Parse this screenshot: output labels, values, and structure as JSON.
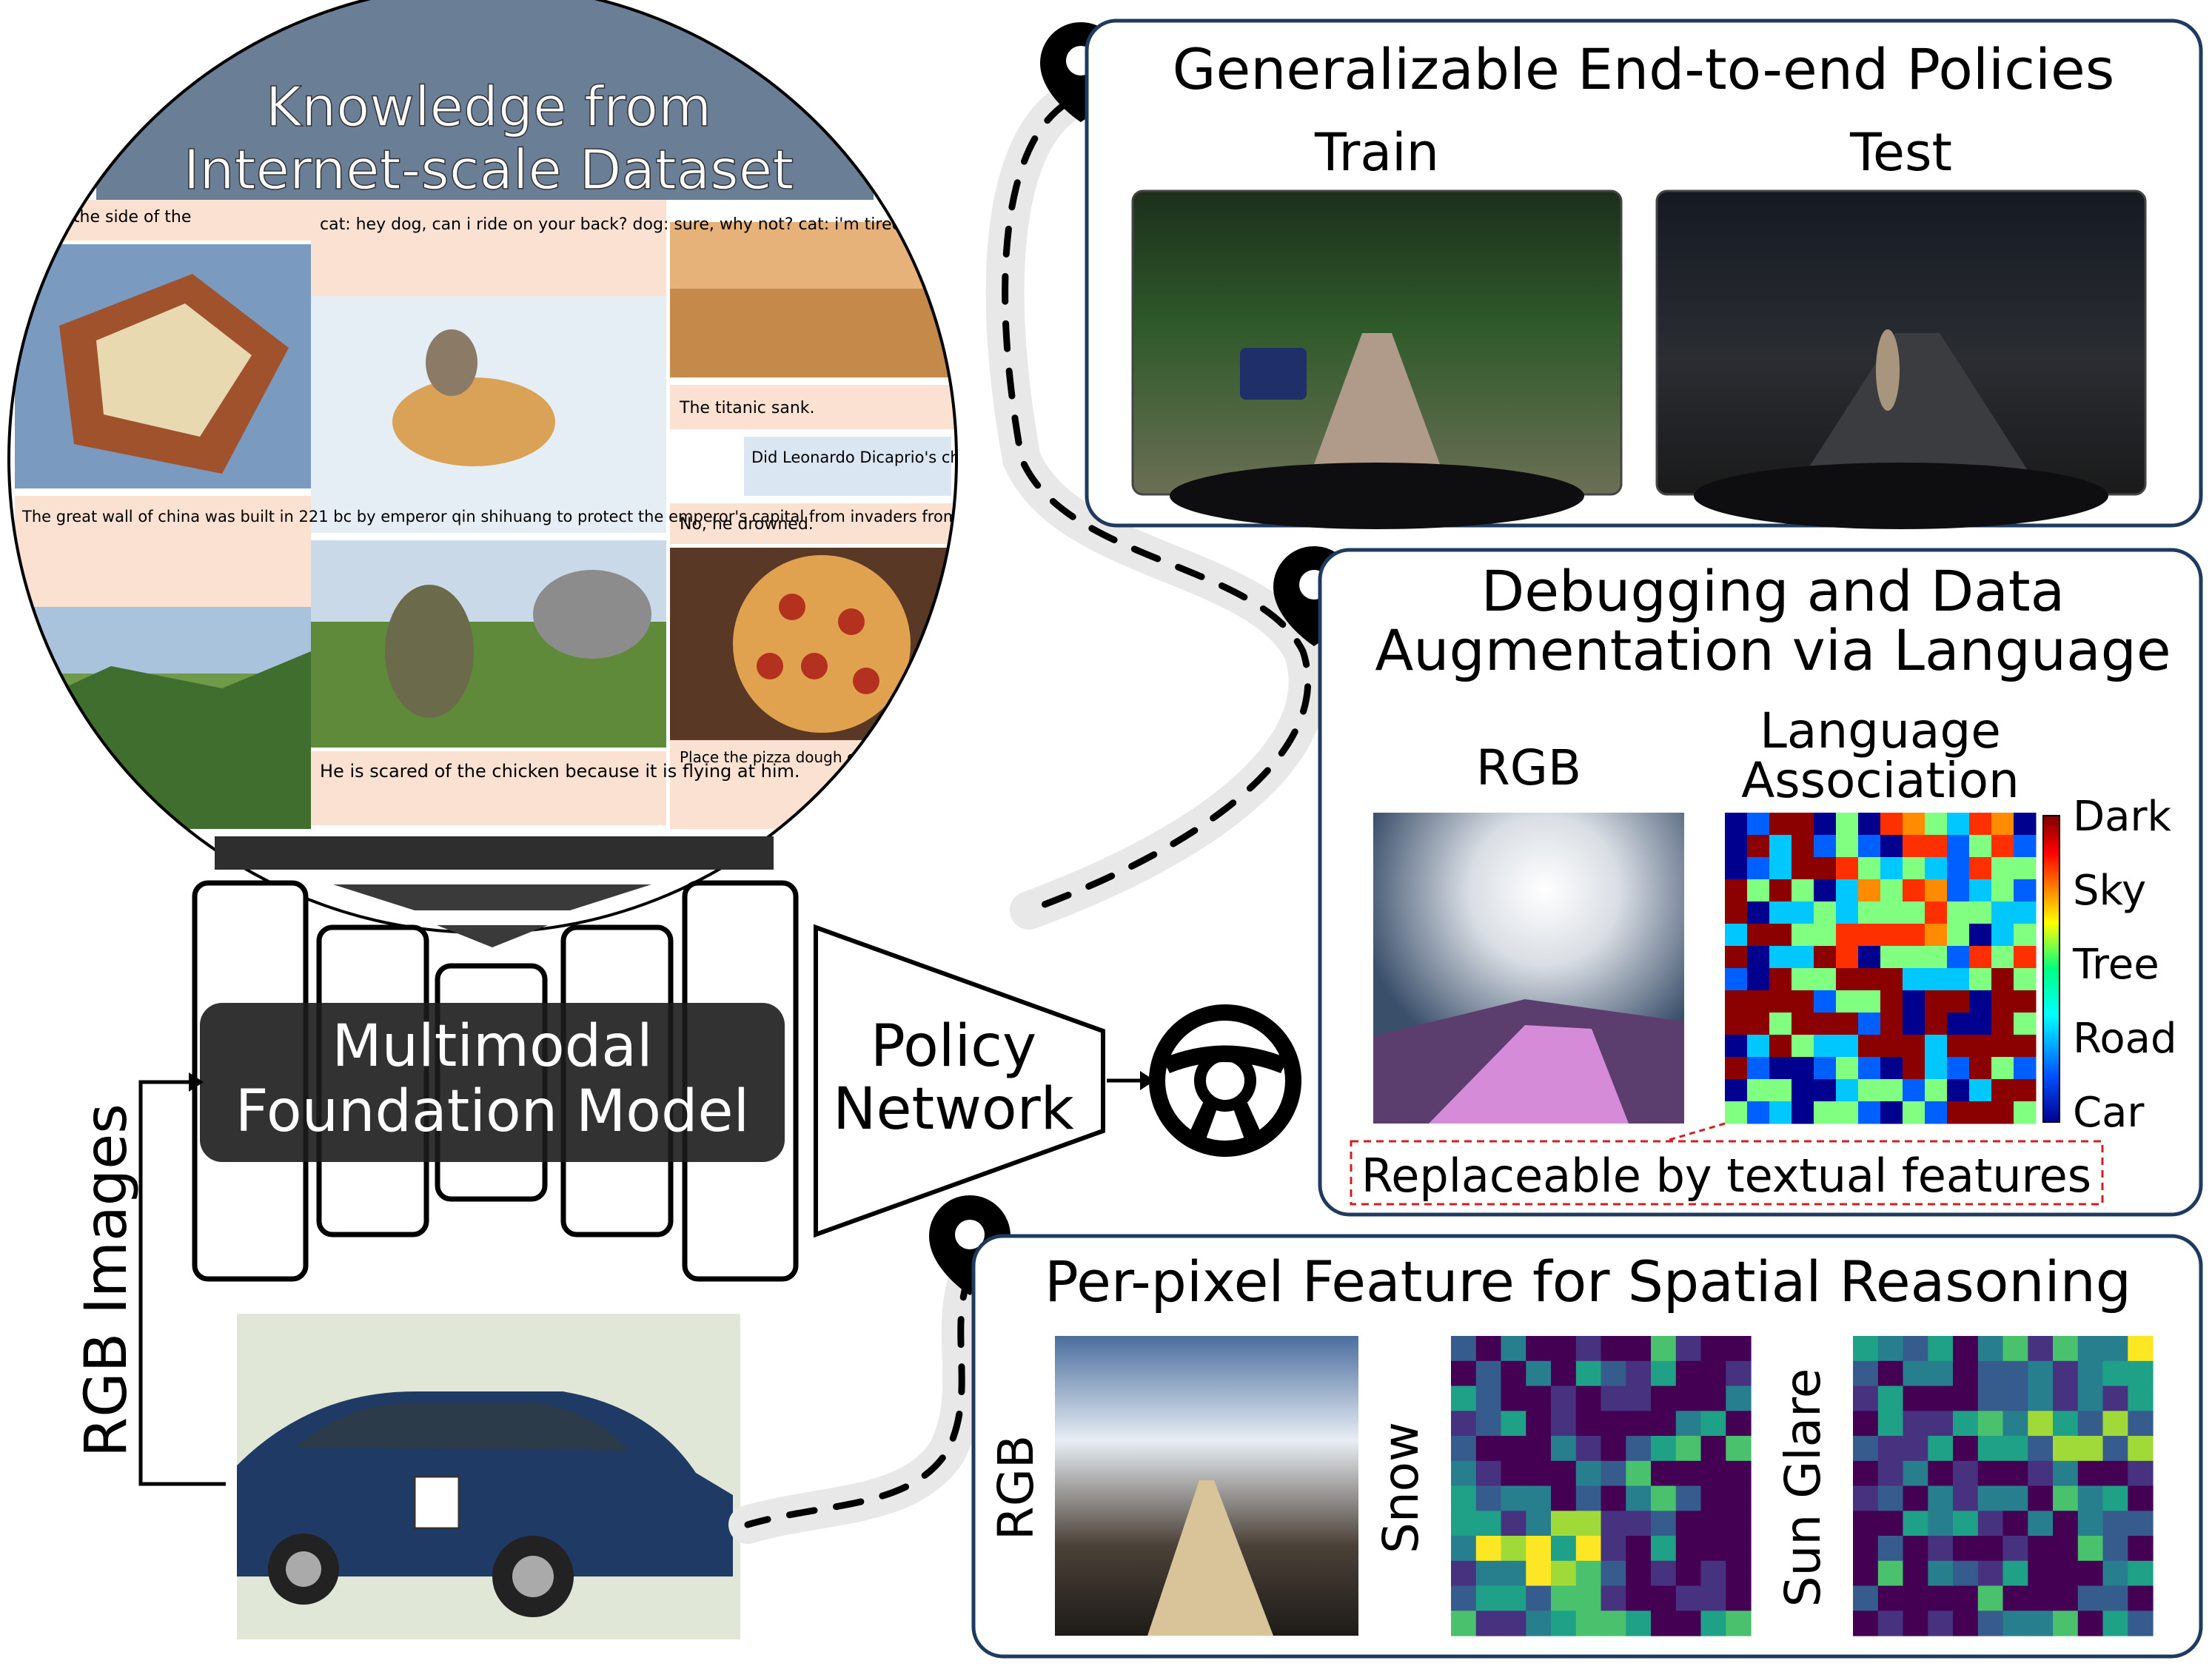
{
  "knowledge": {
    "title_line1": "Knowledge from",
    "title_line2": "Internet-scale Dataset",
    "snippets": {
      "great_wall_top": "The great wall of china was built in 221 bc by emperor qin shihuang to",
      "side": "de on the side of the",
      "cat_dog": "cat: hey dog, can i ride on your back?\ndog: sure, why not?\ncat: i'm tired of walking in the snow.",
      "titanic": "The titanic sank.",
      "leonardo": "Did Leonardo Dicaprio's character survive?",
      "drowned": "No, he drowned.",
      "great_wall": "The great wall of china was built in 221 bc by emperor qin shihuang to protect the emperor's capital from invaders from the north.",
      "chicken": "He is scared of the chicken because it is flying at him.",
      "pizza": "Place the pizza dough on a sheet, brush with olive oil, with salt, pepper"
    }
  },
  "model": {
    "line1": "Multimodal",
    "line2": "Foundation Model"
  },
  "policy": {
    "line1": "Policy",
    "line2": "Network"
  },
  "input_label": "RGB Images",
  "panel1": {
    "title": "Generalizable End-to-end Policies",
    "train": "Train",
    "test": "Test"
  },
  "panel2": {
    "title_line1": "Debugging and Data",
    "title_line2": "Augmentation via Language",
    "rgb": "RGB",
    "lang_line1": "Language",
    "lang_line2": "Association",
    "legend": [
      "Dark",
      "Sky",
      "Tree",
      "Road",
      "Car"
    ],
    "note": "Replaceable by textual features"
  },
  "panel3": {
    "title": "Per-pixel Feature for Spatial Reasoning",
    "rgb": "RGB",
    "snow": "Snow",
    "glare": "Sun Glare"
  },
  "colors": {
    "card_border": "#1f3a5f",
    "caption_bg": "#fbe1d2",
    "question_bg": "#dbe6f3",
    "note_border": "#d11f1f"
  }
}
